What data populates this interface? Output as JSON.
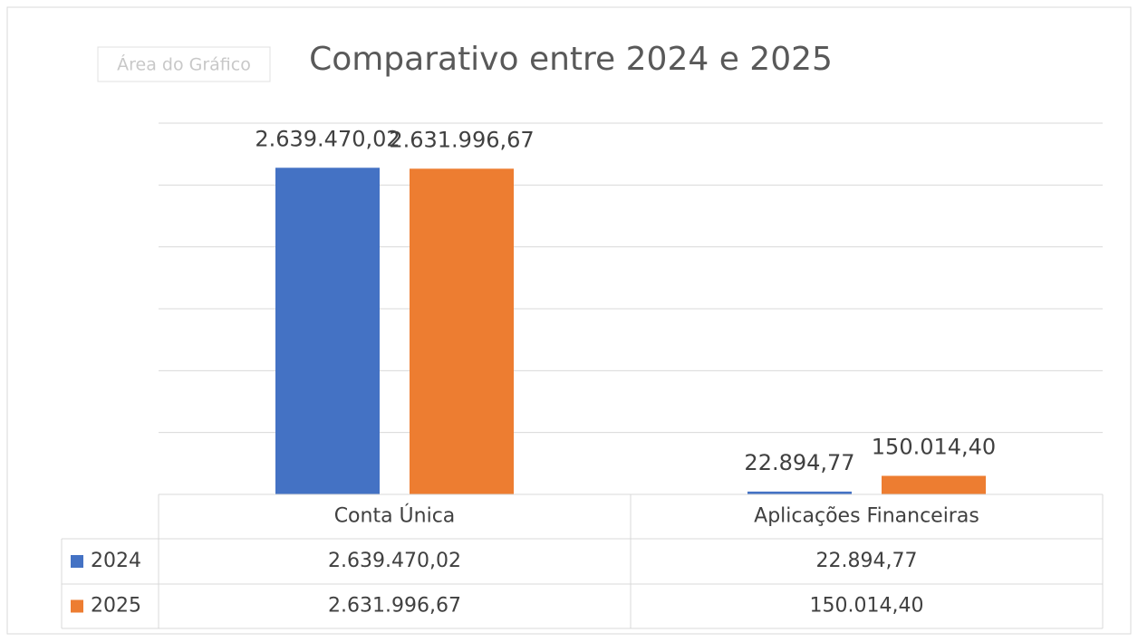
{
  "chart_data": {
    "type": "bar",
    "title": "Comparativo entre 2024 e 2025",
    "tooltip": "Área do Gráfico",
    "categories": [
      "Conta Única",
      "Aplicações Financeiras"
    ],
    "series": [
      {
        "name": "2024",
        "color": "#4472c4",
        "values": [
          2639470.02,
          22894.77
        ],
        "value_labels": [
          "2.639.470,02",
          "22.894,77"
        ]
      },
      {
        "name": "2025",
        "color": "#ed7d31",
        "values": [
          2631996.67,
          150014.4
        ],
        "value_labels": [
          "2.631.996,67",
          "150.014,40"
        ]
      }
    ],
    "ylim": [
      0,
      3000000
    ],
    "yticks": [
      0,
      500000,
      1000000,
      1500000,
      2000000,
      2500000,
      3000000
    ],
    "grid": true,
    "data_table": true
  }
}
